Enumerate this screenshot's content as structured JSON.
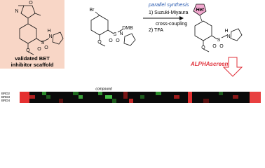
{
  "scaffold": {
    "caption": [
      "validated BET",
      "inhibitor scaffold"
    ],
    "atoms": [
      "O",
      "N",
      "N",
      "H",
      "O",
      "O",
      "S",
      "O"
    ]
  },
  "reagent": {
    "atoms": [
      "Br",
      "DMB",
      "N",
      "O",
      "O",
      "S",
      "O"
    ]
  },
  "reaction": {
    "title": "parallel synthesis",
    "steps": [
      "1) Suzuki-Miyaura",
      "cross-coupling",
      "2) TFA"
    ]
  },
  "product": {
    "atoms": [
      "Het",
      "N",
      "H",
      "O",
      "O",
      "S",
      "O"
    ]
  },
  "assay": {
    "label": "ALPHAscreen"
  },
  "heatmap": {
    "xlabel": "compound",
    "rows": [
      "BRD2",
      "BRD3",
      "BRD4"
    ]
  }
}
